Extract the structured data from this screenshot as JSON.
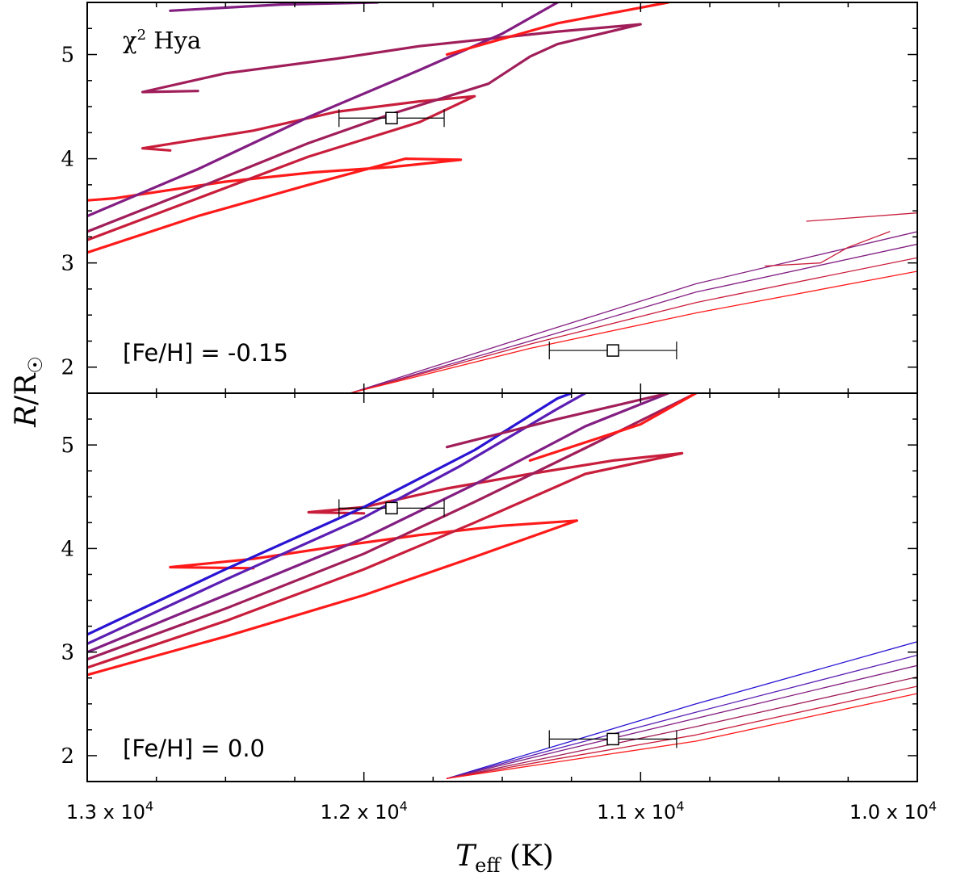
{
  "chart_data": {
    "type": "line",
    "xlabel": "T_eff (K)",
    "ylabel": "R/R☉",
    "x_axis_reversed": true,
    "xlim": [
      13000,
      10000
    ],
    "x_ticks": [
      {
        "value": 13000,
        "mantissa": "1.3 x 10",
        "exp": "4"
      },
      {
        "value": 12000,
        "mantissa": "1.2 x 10",
        "exp": "4"
      },
      {
        "value": 11000,
        "mantissa": "1.1 x 10",
        "exp": "4"
      },
      {
        "value": 10000,
        "mantissa": "1.0 x 10",
        "exp": "4"
      }
    ],
    "colors": {
      "red": "#ff1a1a",
      "crimson": "#c81e3c",
      "magenta": "#a01e5a",
      "purple": "#821e82",
      "violet": "#5a1eb4",
      "blue": "#2814d2"
    },
    "panels": [
      {
        "id": "top",
        "star_label_main": "χ",
        "star_label_sup": "2",
        "star_label_rest": " Hya",
        "metallicity_label": "[Fe/H] = -0.15",
        "ylim": [
          1.75,
          5.5
        ],
        "y_ticks": [
          2,
          3,
          4,
          5
        ],
        "primary": {
          "teff": 11900,
          "teff_err": 190,
          "radius": 4.39,
          "radius_err": 0.05
        },
        "secondary": {
          "teff": 11100,
          "teff_err": 230,
          "radius": 2.16,
          "radius_err": 0.05
        },
        "primary_tracks": [
          {
            "color": "red",
            "points": [
              [
                13000,
                3.1
              ],
              [
                12600,
                3.45
              ],
              [
                12200,
                3.75
              ],
              [
                11850,
                4.0
              ],
              [
                11650,
                3.99
              ],
              [
                11900,
                3.92
              ],
              [
                12180,
                3.87
              ],
              [
                12500,
                3.78
              ],
              [
                12900,
                3.62
              ],
              [
                13000,
                3.6
              ]
            ]
          },
          {
            "color": "crimson",
            "points": [
              [
                13000,
                3.22
              ],
              [
                12600,
                3.62
              ],
              [
                12200,
                4.02
              ],
              [
                11800,
                4.35
              ],
              [
                11600,
                4.6
              ],
              [
                11800,
                4.55
              ],
              [
                12100,
                4.45
              ],
              [
                12400,
                4.27
              ],
              [
                12800,
                4.1
              ],
              [
                12700,
                4.08
              ]
            ]
          },
          {
            "color": "magenta",
            "points": [
              [
                13000,
                3.3
              ],
              [
                12600,
                3.72
              ],
              [
                12200,
                4.15
              ],
              [
                11900,
                4.43
              ],
              [
                11550,
                4.72
              ],
              [
                11400,
                4.98
              ],
              [
                11300,
                5.1
              ],
              [
                11000,
                5.29
              ],
              [
                11300,
                5.22
              ],
              [
                11800,
                5.08
              ],
              [
                12100,
                4.96
              ],
              [
                12500,
                4.82
              ],
              [
                12800,
                4.64
              ],
              [
                12600,
                4.65
              ]
            ]
          },
          {
            "color": "purple",
            "points": [
              [
                13000,
                3.45
              ],
              [
                12600,
                3.9
              ],
              [
                12200,
                4.4
              ],
              [
                11800,
                4.85
              ],
              [
                11500,
                5.2
              ],
              [
                11300,
                5.5
              ]
            ]
          },
          {
            "color": "purple",
            "points": [
              [
                12700,
                5.42
              ],
              [
                12300,
                5.48
              ],
              [
                11950,
                5.5
              ]
            ]
          },
          {
            "color": "red",
            "points": [
              [
                11700,
                5.0
              ],
              [
                11300,
                5.3
              ],
              [
                10900,
                5.5
              ]
            ]
          }
        ],
        "secondary_tracks": [
          {
            "color": "purple",
            "points": [
              [
                12050,
                1.75
              ],
              [
                11400,
                2.3
              ],
              [
                10800,
                2.8
              ],
              [
                10000,
                3.3
              ]
            ]
          },
          {
            "color": "purple",
            "points": [
              [
                12050,
                1.75
              ],
              [
                11400,
                2.25
              ],
              [
                10800,
                2.72
              ],
              [
                10000,
                3.18
              ]
            ]
          },
          {
            "color": "crimson",
            "points": [
              [
                12050,
                1.75
              ],
              [
                11400,
                2.22
              ],
              [
                10800,
                2.62
              ],
              [
                10000,
                3.05
              ]
            ]
          },
          {
            "color": "red",
            "points": [
              [
                12050,
                1.75
              ],
              [
                11400,
                2.18
              ],
              [
                10800,
                2.52
              ],
              [
                10000,
                2.92
              ]
            ]
          },
          {
            "color": "crimson",
            "points": [
              [
                10550,
                2.97
              ],
              [
                10350,
                3.0
              ],
              [
                10250,
                3.15
              ],
              [
                10100,
                3.3
              ]
            ]
          },
          {
            "color": "crimson",
            "points": [
              [
                10400,
                3.4
              ],
              [
                10000,
                3.48
              ]
            ]
          }
        ]
      },
      {
        "id": "bottom",
        "metallicity_label": "[Fe/H] = 0.0",
        "ylim": [
          1.75,
          5.5
        ],
        "y_ticks": [
          2,
          3,
          4,
          5
        ],
        "primary": {
          "teff": 11900,
          "teff_err": 190,
          "radius": 4.39,
          "radius_err": 0.05
        },
        "secondary": {
          "teff": 11100,
          "teff_err": 230,
          "radius": 2.16,
          "radius_err": 0.05
        },
        "primary_tracks": [
          {
            "color": "red",
            "points": [
              [
                13000,
                2.78
              ],
              [
                12500,
                3.15
              ],
              [
                12000,
                3.55
              ],
              [
                11600,
                3.92
              ],
              [
                11230,
                4.27
              ],
              [
                11500,
                4.22
              ],
              [
                11800,
                4.13
              ],
              [
                12100,
                4.02
              ],
              [
                12400,
                3.9
              ],
              [
                12700,
                3.82
              ],
              [
                12400,
                3.81
              ]
            ]
          },
          {
            "color": "crimson",
            "points": [
              [
                13000,
                2.85
              ],
              [
                12500,
                3.3
              ],
              [
                12000,
                3.8
              ],
              [
                11600,
                4.25
              ],
              [
                11200,
                4.72
              ],
              [
                10850,
                4.92
              ],
              [
                11100,
                4.85
              ],
              [
                11400,
                4.72
              ],
              [
                11700,
                4.58
              ],
              [
                12000,
                4.4
              ],
              [
                12200,
                4.35
              ],
              [
                12000,
                4.34
              ]
            ]
          },
          {
            "color": "magenta",
            "points": [
              [
                13000,
                2.93
              ],
              [
                12500,
                3.42
              ],
              [
                12000,
                3.95
              ],
              [
                11600,
                4.45
              ],
              [
                11200,
                4.97
              ],
              [
                10800,
                5.5
              ]
            ]
          },
          {
            "color": "purple",
            "points": [
              [
                13000,
                3.0
              ],
              [
                12500,
                3.55
              ],
              [
                12000,
                4.1
              ],
              [
                11600,
                4.62
              ],
              [
                11200,
                5.18
              ],
              [
                10900,
                5.5
              ]
            ]
          },
          {
            "color": "violet",
            "points": [
              [
                13000,
                3.08
              ],
              [
                12500,
                3.7
              ],
              [
                12000,
                4.3
              ],
              [
                11650,
                4.8
              ],
              [
                11300,
                5.35
              ],
              [
                11200,
                5.5
              ]
            ]
          },
          {
            "color": "blue",
            "points": [
              [
                13000,
                3.17
              ],
              [
                12500,
                3.8
              ],
              [
                12000,
                4.4
              ],
              [
                11600,
                4.95
              ],
              [
                11300,
                5.45
              ],
              [
                11250,
                5.5
              ]
            ]
          },
          {
            "color": "magenta",
            "points": [
              [
                11700,
                4.98
              ],
              [
                11300,
                5.25
              ],
              [
                10900,
                5.5
              ]
            ]
          },
          {
            "color": "red",
            "points": [
              [
                11400,
                4.85
              ],
              [
                11000,
                5.2
              ],
              [
                10800,
                5.5
              ]
            ]
          }
        ],
        "secondary_tracks": [
          {
            "color": "blue",
            "points": [
              [
                11700,
                1.78
              ],
              [
                11300,
                2.1
              ],
              [
                10800,
                2.5
              ],
              [
                10000,
                3.1
              ]
            ]
          },
          {
            "color": "violet",
            "points": [
              [
                11700,
                1.78
              ],
              [
                11300,
                2.07
              ],
              [
                10800,
                2.42
              ],
              [
                10000,
                2.97
              ]
            ]
          },
          {
            "color": "purple",
            "points": [
              [
                11700,
                1.78
              ],
              [
                11300,
                2.04
              ],
              [
                10800,
                2.36
              ],
              [
                10000,
                2.87
              ]
            ]
          },
          {
            "color": "magenta",
            "points": [
              [
                11700,
                1.78
              ],
              [
                11300,
                2.0
              ],
              [
                10800,
                2.28
              ],
              [
                10000,
                2.76
              ]
            ]
          },
          {
            "color": "crimson",
            "points": [
              [
                11700,
                1.78
              ],
              [
                11300,
                1.97
              ],
              [
                10800,
                2.2
              ],
              [
                10000,
                2.67
              ]
            ]
          },
          {
            "color": "red",
            "points": [
              [
                11700,
                1.78
              ],
              [
                11300,
                1.94
              ],
              [
                10800,
                2.14
              ],
              [
                10000,
                2.6
              ]
            ]
          }
        ]
      }
    ]
  }
}
